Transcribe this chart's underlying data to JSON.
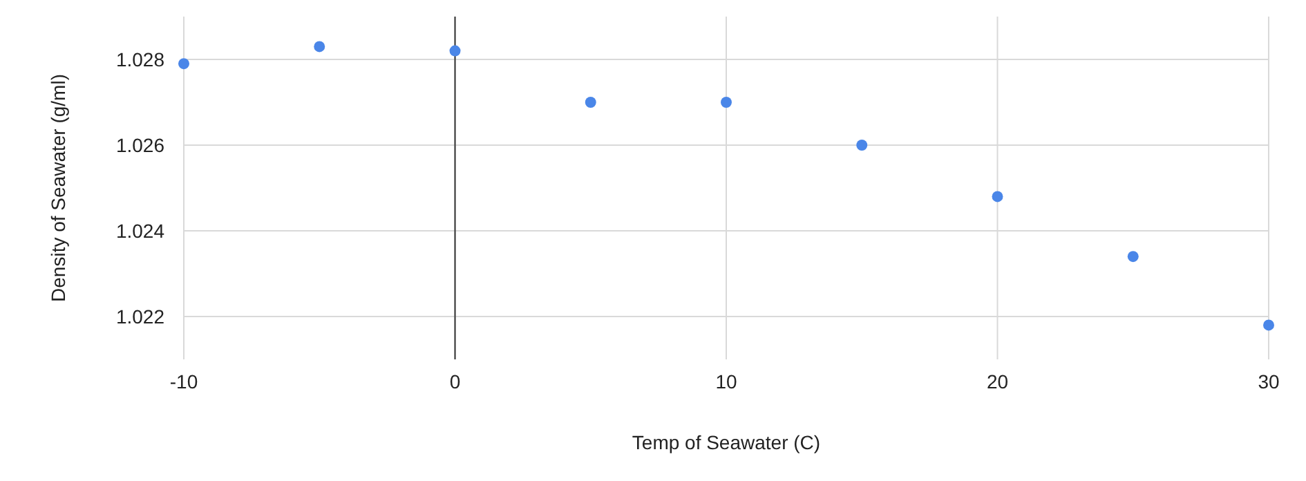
{
  "chart_data": {
    "type": "scatter",
    "xlabel": "Temp of Seawater (C)",
    "ylabel": "Density of Seawater (g/ml)",
    "x": [
      -10,
      -5,
      0,
      5,
      10,
      15,
      20,
      25,
      30
    ],
    "series": [
      {
        "color": "#4a86e8",
        "values": [
          1.0279,
          1.0283,
          1.0282,
          1.027,
          1.027,
          1.026,
          1.0248,
          1.0234,
          1.0218
        ]
      }
    ],
    "xlim": [
      -10,
      30
    ],
    "xticks": [
      -10,
      0,
      10,
      20,
      30
    ],
    "ylim": [
      1.021,
      1.029
    ],
    "yticks": [
      1.022,
      1.024,
      1.026,
      1.028
    ],
    "ref_lines": [
      {
        "axis": "x",
        "value": 0,
        "color": "#333333"
      }
    ],
    "grid": true,
    "marker": "circle"
  }
}
